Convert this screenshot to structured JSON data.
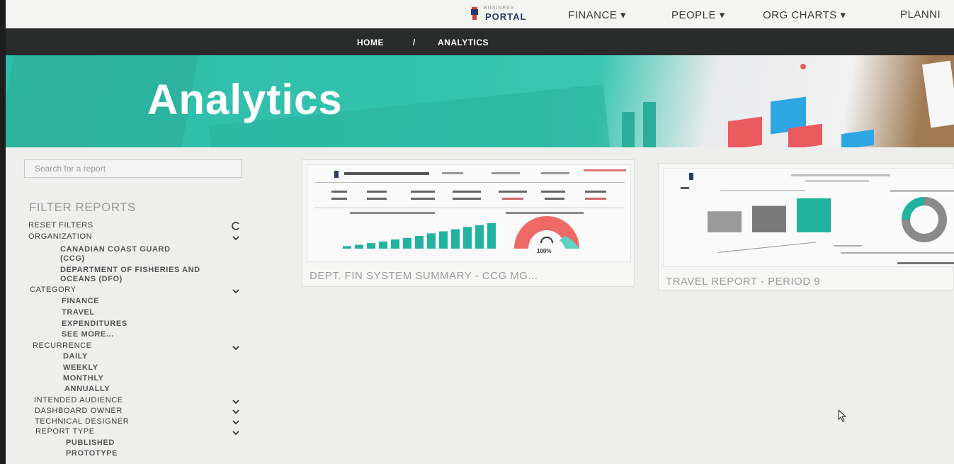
{
  "topnav": {
    "logo": {
      "small": "BUSINESS",
      "big": "PORTAL"
    },
    "items": [
      {
        "label": "FINANCE ▾"
      },
      {
        "label": "PEOPLE ▾"
      },
      {
        "label": "ORG CHARTS ▾"
      },
      {
        "label": "PLANNI"
      }
    ]
  },
  "breadcrumb": {
    "home": "HOME",
    "separator": "/",
    "current": "ANALYTICS"
  },
  "hero": {
    "title": "Analytics"
  },
  "sidebar": {
    "search_placeholder": "Search for a report",
    "filter_title": "FILTER REPORTS",
    "reset": {
      "label": "RESET FILTERS",
      "icon": "refresh-icon"
    },
    "organization": {
      "label": "ORGANIZATION",
      "options": [
        "CANADIAN COAST GUARD",
        "(CCG)",
        "DEPARTMENT OF FISHERIES AND",
        "OCEANS (DFO)"
      ]
    },
    "category": {
      "label": "CATEGORY",
      "options": [
        "FINANCE",
        "TRAVEL",
        "EXPENDITURES",
        "SEE MORE..."
      ]
    },
    "recurrence": {
      "label": "RECURRENCE",
      "options": [
        "DAILY",
        "WEEKLY",
        "MONTHLY",
        "ANNUALLY"
      ]
    },
    "intended_audience": {
      "label": "INTENDED AUDIENCE"
    },
    "dashboard_owner": {
      "label": "DASHBOARD OWNER"
    },
    "technical_designer": {
      "label": "TECHNICAL DESIGNER"
    },
    "report_type": {
      "label": "REPORT TYPE",
      "options": [
        "PUBLISHED",
        "PROTOTYPE"
      ]
    }
  },
  "reports": [
    {
      "caption": "DEPT. FIN SYSTEM SUMMARY - CCG MG...",
      "gauge_label": "100%",
      "bar_levels": [
        0.1,
        0.15,
        0.22,
        0.28,
        0.36,
        0.42,
        0.5,
        0.6,
        0.68,
        0.76,
        0.85,
        0.92,
        1.0
      ]
    },
    {
      "caption": "TRAVEL REPORT - PERIOD 9",
      "bar_levels": [
        0.62,
        0.78,
        1.0
      ]
    }
  ],
  "colors": {
    "teal": "#22b3a0",
    "coral": "#ee6a66",
    "gray": "#8a8a8a",
    "nav_dark": "#2a2b2b"
  }
}
